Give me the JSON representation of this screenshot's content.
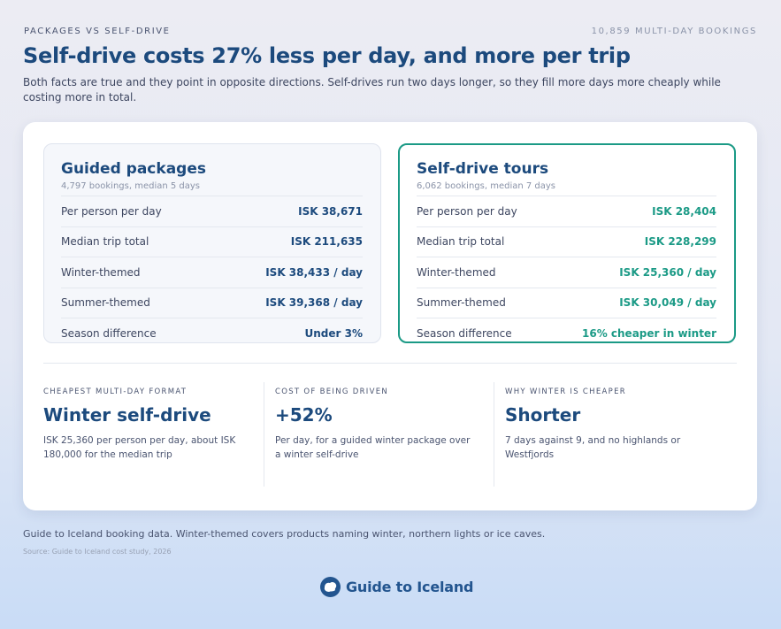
{
  "header": {
    "eyebrow_left": "PACKAGES VS SELF-DRIVE",
    "eyebrow_right": "10,859 MULTI-DAY BOOKINGS",
    "title": "Self-drive costs 27% less per day, and more per trip",
    "subtitle": "Both facts are true and they point in opposite directions. Self-drives run two days longer, so they fill more days more cheaply while costing more in total."
  },
  "guided": {
    "title": "Guided packages",
    "sub": "4,797 bookings, median 5 days",
    "rows": [
      {
        "label": "Per person per day",
        "value": "ISK 38,671"
      },
      {
        "label": "Median trip total",
        "value": "ISK 211,635"
      },
      {
        "label": "Winter-themed",
        "value": "ISK 38,433 / day"
      },
      {
        "label": "Summer-themed",
        "value": "ISK 39,368 / day"
      },
      {
        "label": "Season difference",
        "value": "Under 3%"
      }
    ]
  },
  "self": {
    "title": "Self-drive tours",
    "sub": "6,062 bookings, median 7 days",
    "rows": [
      {
        "label": "Per person per day",
        "value": "ISK 28,404"
      },
      {
        "label": "Median trip total",
        "value": "ISK 228,299"
      },
      {
        "label": "Winter-themed",
        "value": "ISK 25,360 / day"
      },
      {
        "label": "Summer-themed",
        "value": "ISK 30,049 / day"
      },
      {
        "label": "Season difference",
        "value": "16% cheaper in winter"
      }
    ]
  },
  "stats": [
    {
      "eyebrow": "CHEAPEST MULTI-DAY FORMAT",
      "big": "Winter self-drive",
      "desc": "ISK 25,360 per person per day, about ISK 180,000 for the median trip"
    },
    {
      "eyebrow": "COST OF BEING DRIVEN",
      "big": "+52%",
      "desc": "Per day, for a guided winter package over a winter self-drive"
    },
    {
      "eyebrow": "WHY WINTER IS CHEAPER",
      "big": "Shorter",
      "desc": "7 days against 9, and no highlands or Westfjords"
    }
  ],
  "footer": {
    "note": "Guide to Iceland booking data. Winter-themed covers products naming winter, northern lights or ice caves.",
    "source": "Source: Guide to Iceland cost study, 2026",
    "logo_text": "Guide to Iceland",
    "logo_icon": "iceland-logo-icon"
  },
  "colors": {
    "navy": "#1c4a7d",
    "teal": "#1b9a86",
    "logo": "#23558f"
  }
}
